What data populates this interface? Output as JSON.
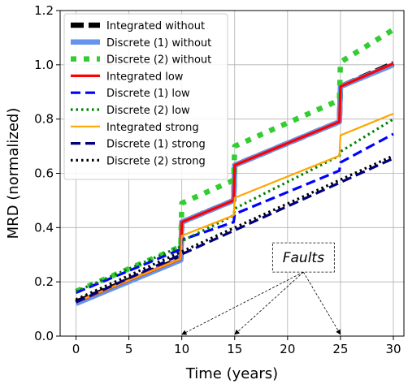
{
  "chart_data": {
    "type": "line",
    "xlabel": "Time (years)",
    "ylabel": "MRD (normalized)",
    "xlim": [
      -1.5,
      31
    ],
    "ylim": [
      0.0,
      1.2
    ],
    "xticks": [
      0,
      5,
      10,
      15,
      20,
      25,
      30
    ],
    "yticks": [
      0.0,
      0.2,
      0.4,
      0.6,
      0.8,
      1.0,
      1.2
    ],
    "ytick_labels": [
      "0.0",
      "0.2",
      "0.4",
      "0.6",
      "0.8",
      "1.0",
      "1.2"
    ],
    "grid": true,
    "legend_position": "upper-left",
    "series": [
      {
        "name": "Integrated without",
        "color": "#000000",
        "dash": "long-dash",
        "width": "thick",
        "points": [
          [
            0,
            0.125
          ],
          [
            9.9,
            0.285
          ],
          [
            10,
            0.42
          ],
          [
            14.9,
            0.5
          ],
          [
            15,
            0.63
          ],
          [
            24.9,
            0.79
          ],
          [
            25,
            0.92
          ],
          [
            30,
            1.005
          ]
        ]
      },
      {
        "name": "Discrete (1) without",
        "color": "#6495ed",
        "dash": "solid",
        "width": "thick",
        "points": [
          [
            0,
            0.12
          ],
          [
            9.9,
            0.28
          ],
          [
            10,
            0.42
          ],
          [
            14.9,
            0.5
          ],
          [
            15,
            0.63
          ],
          [
            24.9,
            0.79
          ],
          [
            25,
            0.92
          ],
          [
            30,
            1.0
          ]
        ]
      },
      {
        "name": "Discrete (2) without",
        "color": "#32cd32",
        "dash": "square-dot",
        "width": "thick",
        "points": [
          [
            0,
            0.165
          ],
          [
            9.9,
            0.33
          ],
          [
            10,
            0.49
          ],
          [
            14.9,
            0.575
          ],
          [
            15,
            0.7
          ],
          [
            24.9,
            0.87
          ],
          [
            25,
            1.01
          ],
          [
            30,
            1.13
          ]
        ]
      },
      {
        "name": "Integrated low",
        "color": "#ff0000",
        "dash": "solid",
        "width": "medium",
        "points": [
          [
            0,
            0.125
          ],
          [
            9.9,
            0.285
          ],
          [
            10,
            0.42
          ],
          [
            14.9,
            0.5
          ],
          [
            15,
            0.63
          ],
          [
            24.9,
            0.79
          ],
          [
            25,
            0.92
          ],
          [
            30,
            1.005
          ]
        ]
      },
      {
        "name": "Discrete (1) low",
        "color": "#0000ff",
        "dash": "dash",
        "width": "medium",
        "points": [
          [
            0,
            0.16
          ],
          [
            9.9,
            0.32
          ],
          [
            10,
            0.355
          ],
          [
            14.9,
            0.42
          ],
          [
            15,
            0.45
          ],
          [
            24.9,
            0.61
          ],
          [
            25,
            0.64
          ],
          [
            30,
            0.745
          ]
        ]
      },
      {
        "name": "Discrete (2) low",
        "color": "#008000",
        "dash": "dot",
        "width": "medium",
        "points": [
          [
            0,
            0.165
          ],
          [
            9.9,
            0.33
          ],
          [
            10,
            0.35
          ],
          [
            14.9,
            0.445
          ],
          [
            15,
            0.47
          ],
          [
            24.9,
            0.665
          ],
          [
            25,
            0.68
          ],
          [
            30,
            0.8
          ]
        ]
      },
      {
        "name": "Integrated strong",
        "color": "#ffa500",
        "dash": "solid",
        "width": "thin",
        "points": [
          [
            0,
            0.125
          ],
          [
            9.9,
            0.285
          ],
          [
            10,
            0.37
          ],
          [
            14.9,
            0.445
          ],
          [
            15,
            0.51
          ],
          [
            24.9,
            0.665
          ],
          [
            25,
            0.74
          ],
          [
            30,
            0.82
          ]
        ]
      },
      {
        "name": "Discrete (1) strong",
        "color": "#000080",
        "dash": "dash",
        "width": "medium",
        "points": [
          [
            0,
            0.125
          ],
          [
            30,
            0.655
          ]
        ]
      },
      {
        "name": "Discrete (2) strong",
        "color": "#000000",
        "dash": "dot",
        "width": "medium",
        "points": [
          [
            0,
            0.135
          ],
          [
            30,
            0.665
          ]
        ]
      }
    ],
    "annotations": [
      {
        "text": "Faults",
        "box_at": [
          21.5,
          0.29
        ],
        "arrows_to": [
          [
            10,
            0.0
          ],
          [
            15,
            0.0
          ],
          [
            25,
            0.0
          ]
        ]
      }
    ]
  }
}
